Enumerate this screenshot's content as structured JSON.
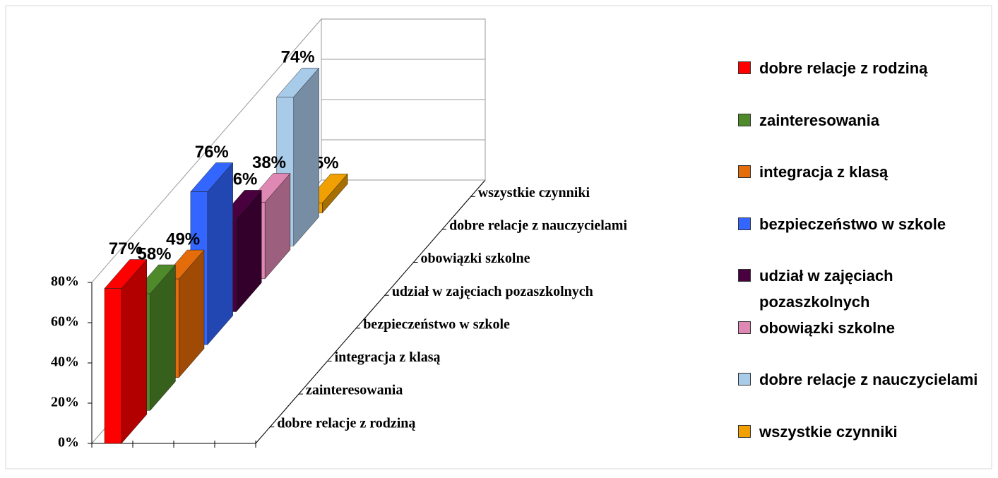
{
  "chart_data": {
    "type": "bar3d",
    "categories": [
      "dobre relacje z rodziną",
      "zainteresowania",
      "integracja z klasą",
      "bezpieczeństwo w szkole",
      "udział w zajęciach pozaszkolnych",
      "obowiązki szkolne",
      "dobre relacje z nauczycielami",
      "wszystkie czynniki"
    ],
    "values": [
      77,
      58,
      49,
      76,
      46,
      38,
      74,
      5
    ],
    "value_labels": [
      "77%",
      "58%",
      "49%",
      "76%",
      "46%",
      "38%",
      "74%",
      "5%"
    ],
    "colors": [
      "#ff0000",
      "#4f8a2a",
      "#e46c0a",
      "#3366ff",
      "#4a003f",
      "#e088b4",
      "#a9cbea",
      "#f0a000"
    ],
    "ylim": [
      0,
      80
    ],
    "yticks": [
      {
        "value": 0,
        "label": "0%"
      },
      {
        "value": 20,
        "label": "20%"
      },
      {
        "value": 40,
        "label": "40%"
      },
      {
        "value": 60,
        "label": "60%"
      },
      {
        "value": 80,
        "label": "80%"
      }
    ],
    "grid": true,
    "legend": "right"
  }
}
